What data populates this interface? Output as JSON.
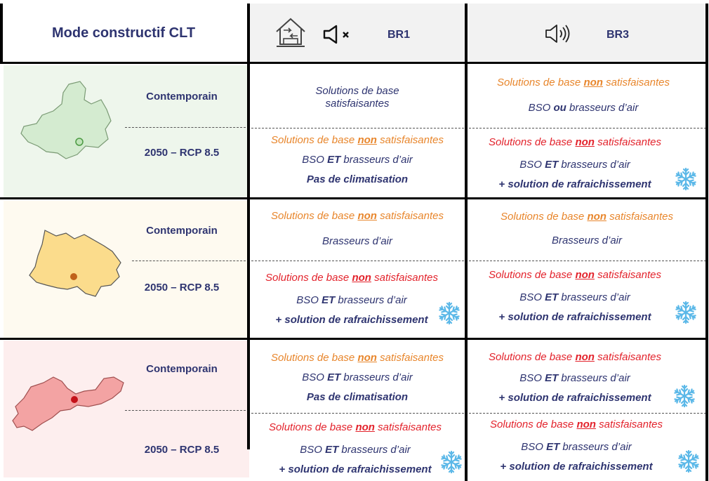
{
  "header": {
    "title": "Mode constructif CLT",
    "br1": "BR1",
    "br3": "BR3"
  },
  "colors": {
    "band1": "#eef6ec",
    "band2": "#fefaf0",
    "band3": "#fdeeee",
    "navy": "#2e3470",
    "orange": "#e8862c",
    "red": "#e3232c"
  },
  "rows": [
    {
      "label_contemporain": "Contemporain",
      "label_future": "2050 – RCP 8.5",
      "map": "green-region-map"
    },
    {
      "label_contemporain": "Contemporain",
      "label_future": "2050 – RCP 8.5",
      "map": "yellow-region-map"
    },
    {
      "label_contemporain": "Contemporain",
      "label_future": "2050 – RCP 8.5",
      "map": "red-region-map"
    }
  ],
  "phrases": {
    "base_ok_1": "Solutions de base",
    "base_ok_2": "satisfaisantes",
    "base_pre": "Solutions de base ",
    "non": "non",
    "base_post": " satisfaisantes",
    "bso": "BSO ",
    "ou": "ou",
    "et": "ET",
    "brasseurs_suffix": " brasseurs d’air",
    "brasseurs": "Brasseurs d’air",
    "pas_clim": "Pas de climatisation",
    "rafraich": "+ solution de rafraichissement"
  }
}
